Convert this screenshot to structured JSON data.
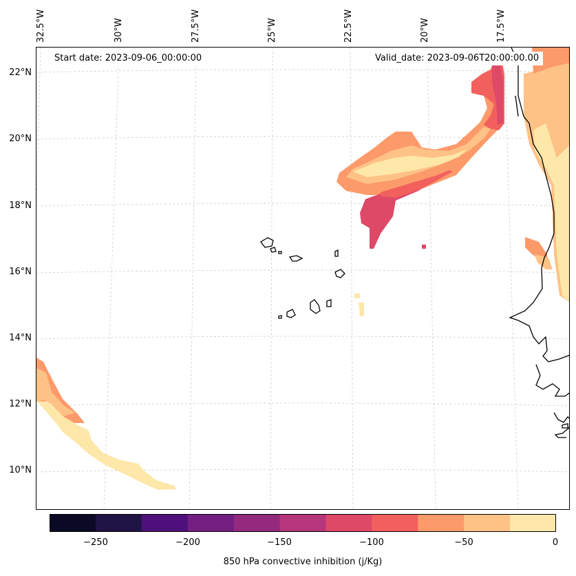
{
  "map": {
    "start_date": "Start date: 2023-09-06_00:00:00",
    "valid_date": "Valid_date: 2023-09-06T20:00:00.00",
    "lat_labels": [
      "22°N",
      "20°N",
      "18°N",
      "16°N",
      "14°N",
      "12°N",
      "10°N"
    ],
    "lon_labels": [
      "32.5°W",
      "30°W",
      "27.5°W",
      "25°W",
      "22.5°W",
      "20°W",
      "17.5°W"
    ]
  },
  "colorbar": {
    "label": "850 hPa convective inhibition (j/Kg)",
    "ticks": [
      "−250",
      "−200",
      "−150",
      "−100",
      "−50",
      "0"
    ],
    "levels": [
      -275,
      -250,
      -225,
      -200,
      -175,
      -150,
      -125,
      -100,
      -75,
      -50,
      -25,
      0
    ],
    "colors": [
      "#0b0a24",
      "#201445",
      "#4e117b",
      "#731f82",
      "#932a7e",
      "#b5367a",
      "#de4968",
      "#f1605d",
      "#fd9a6a",
      "#fec287",
      "#fde7a9"
    ]
  }
}
